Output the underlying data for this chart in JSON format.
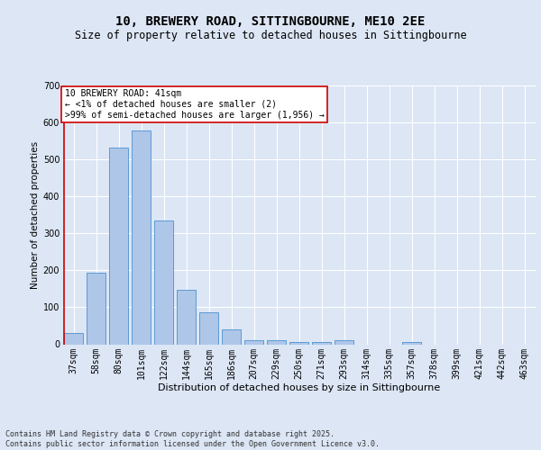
{
  "title": "10, BREWERY ROAD, SITTINGBOURNE, ME10 2EE",
  "subtitle": "Size of property relative to detached houses in Sittingbourne",
  "xlabel": "Distribution of detached houses by size in Sittingbourne",
  "ylabel": "Number of detached properties",
  "categories": [
    "37sqm",
    "58sqm",
    "80sqm",
    "101sqm",
    "122sqm",
    "144sqm",
    "165sqm",
    "186sqm",
    "207sqm",
    "229sqm",
    "250sqm",
    "271sqm",
    "293sqm",
    "314sqm",
    "335sqm",
    "357sqm",
    "378sqm",
    "399sqm",
    "421sqm",
    "442sqm",
    "463sqm"
  ],
  "values": [
    30,
    193,
    533,
    578,
    335,
    148,
    86,
    40,
    12,
    10,
    5,
    5,
    10,
    0,
    0,
    5,
    0,
    0,
    0,
    0,
    0
  ],
  "bar_color": "#aec6e8",
  "bar_edge_color": "#5b9bd5",
  "highlight_color": "#cc0000",
  "highlight_index": 0,
  "annotation_text": "10 BREWERY ROAD: 41sqm\n← <1% of detached houses are smaller (2)\n>99% of semi-detached houses are larger (1,956) →",
  "annotation_box_color": "#ffffff",
  "annotation_box_edge_color": "#cc0000",
  "background_color": "#dce6f5",
  "grid_color": "#ffffff",
  "ylim": [
    0,
    700
  ],
  "yticks": [
    0,
    100,
    200,
    300,
    400,
    500,
    600,
    700
  ],
  "footer": "Contains HM Land Registry data © Crown copyright and database right 2025.\nContains public sector information licensed under the Open Government Licence v3.0.",
  "title_fontsize": 10,
  "subtitle_fontsize": 8.5,
  "xlabel_fontsize": 8,
  "ylabel_fontsize": 7.5,
  "tick_fontsize": 7,
  "annotation_fontsize": 7,
  "footer_fontsize": 6
}
